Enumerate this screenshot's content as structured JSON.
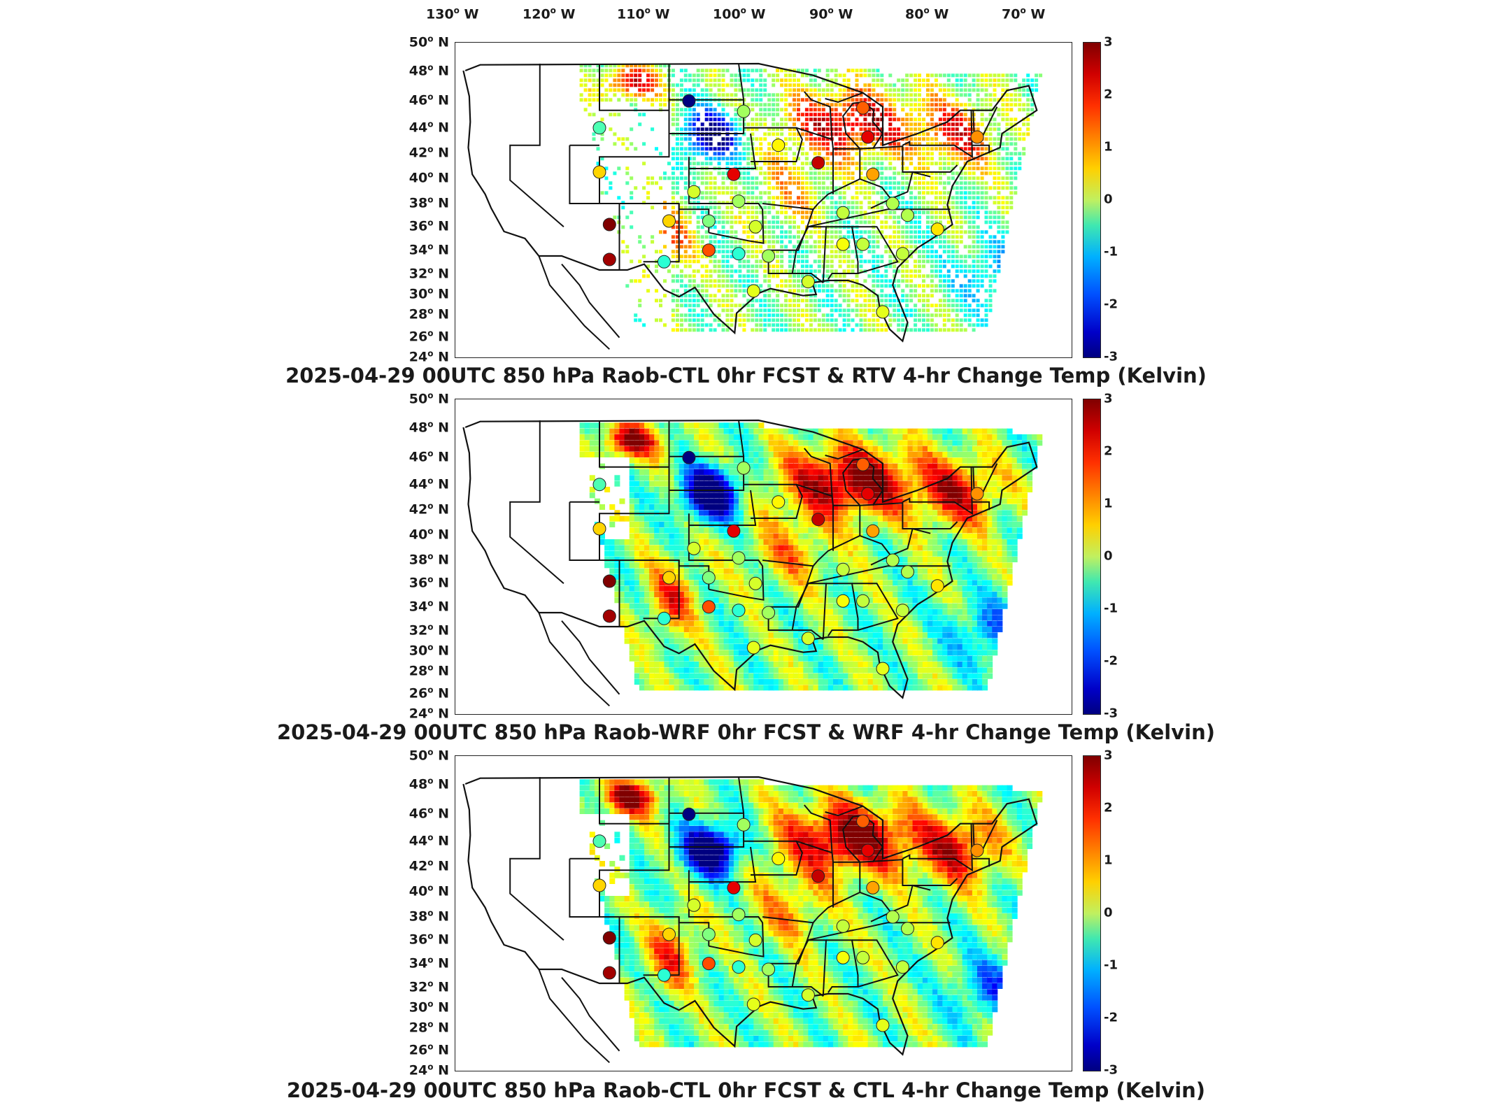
{
  "longitude_labels": [
    {
      "deg": "130",
      "hem": "W"
    },
    {
      "deg": "120",
      "hem": "W"
    },
    {
      "deg": "110",
      "hem": "W"
    },
    {
      "deg": "100",
      "hem": "W"
    },
    {
      "deg": "90",
      "hem": "W"
    },
    {
      "deg": "80",
      "hem": "W"
    },
    {
      "deg": "70",
      "hem": "W"
    }
  ],
  "latitude_labels": [
    {
      "deg": "50",
      "hem": "N"
    },
    {
      "deg": "48",
      "hem": "N"
    },
    {
      "deg": "46",
      "hem": "N"
    },
    {
      "deg": "44",
      "hem": "N"
    },
    {
      "deg": "42",
      "hem": "N"
    },
    {
      "deg": "40",
      "hem": "N"
    },
    {
      "deg": "38",
      "hem": "N"
    },
    {
      "deg": "36",
      "hem": "N"
    },
    {
      "deg": "34",
      "hem": "N"
    },
    {
      "deg": "32",
      "hem": "N"
    },
    {
      "deg": "30",
      "hem": "N"
    },
    {
      "deg": "28",
      "hem": "N"
    },
    {
      "deg": "26",
      "hem": "N"
    },
    {
      "deg": "24",
      "hem": "N"
    }
  ],
  "colorbar": {
    "ticks": [
      "3",
      "2",
      "1",
      "0",
      "-1",
      "-2",
      "-3"
    ],
    "range": [
      -3,
      3
    ],
    "colormap": "jet",
    "colors": [
      "#800000",
      "#d00000",
      "#ff3000",
      "#ff8000",
      "#ffd000",
      "#c0f060",
      "#40e8b0",
      "#00b0ff",
      "#0050ff",
      "#0000c8",
      "#000080"
    ]
  },
  "panels": [
    {
      "title": "2025-04-29 00UTC 850 hPa Raob-CTL 0hr FCST & RTV 4-hr Change Temp (Kelvin)",
      "field_style": "scattered"
    },
    {
      "title": "2025-04-29 00UTC 850 hPa Raob-WRF 0hr FCST & WRF 4-hr Change Temp (Kelvin)",
      "field_style": "filled"
    },
    {
      "title": "2025-04-29 00UTC 850 hPa Raob-CTL 0hr FCST & CTL 4-hr Change Temp (Kelvin)",
      "field_style": "filled"
    }
  ],
  "raob_stations": [
    {
      "name": "stn1",
      "lon": -111.0,
      "lat": 43.5,
      "value": -0.3
    },
    {
      "name": "stn2",
      "lon": -111.0,
      "lat": 39.7,
      "value": 1.0
    },
    {
      "name": "stn3",
      "lon": -110.0,
      "lat": 35.2,
      "value": 3.0
    },
    {
      "name": "stn4",
      "lon": -110.0,
      "lat": 32.2,
      "value": 2.8
    },
    {
      "name": "stn5",
      "lon": -102.0,
      "lat": 45.8,
      "value": -3.0
    },
    {
      "name": "stn6",
      "lon": -96.5,
      "lat": 44.9,
      "value": 0.2
    },
    {
      "name": "stn7",
      "lon": -93.0,
      "lat": 42.0,
      "value": 0.8
    },
    {
      "name": "stn8",
      "lon": -97.5,
      "lat": 39.5,
      "value": 2.4
    },
    {
      "name": "stn9",
      "lon": -101.5,
      "lat": 38.0,
      "value": 0.5
    },
    {
      "name": "stn10",
      "lon": -104.0,
      "lat": 35.5,
      "value": 1.0
    },
    {
      "name": "stn11",
      "lon": -100.0,
      "lat": 35.5,
      "value": 0.0
    },
    {
      "name": "stn12",
      "lon": -97.0,
      "lat": 37.2,
      "value": 0.2
    },
    {
      "name": "stn13",
      "lon": -95.3,
      "lat": 35.0,
      "value": 0.5
    },
    {
      "name": "stn14",
      "lon": -100.0,
      "lat": 33.0,
      "value": 1.8
    },
    {
      "name": "stn15",
      "lon": -104.5,
      "lat": 32.0,
      "value": -0.5
    },
    {
      "name": "stn16",
      "lon": -97.0,
      "lat": 32.7,
      "value": -0.5
    },
    {
      "name": "stn17",
      "lon": -94.0,
      "lat": 32.5,
      "value": 0.2
    },
    {
      "name": "stn18",
      "lon": -89.0,
      "lat": 40.5,
      "value": 2.6
    },
    {
      "name": "stn19",
      "lon": -84.5,
      "lat": 45.2,
      "value": 1.7
    },
    {
      "name": "stn20",
      "lon": -84.0,
      "lat": 42.7,
      "value": 2.4
    },
    {
      "name": "stn21",
      "lon": -83.5,
      "lat": 39.5,
      "value": 1.3
    },
    {
      "name": "stn22",
      "lon": -86.5,
      "lat": 36.2,
      "value": 0.4
    },
    {
      "name": "stn23",
      "lon": -81.5,
      "lat": 37.0,
      "value": 0.3
    },
    {
      "name": "stn24",
      "lon": -80.0,
      "lat": 36.0,
      "value": 0.3
    },
    {
      "name": "stn25",
      "lon": -86.5,
      "lat": 33.5,
      "value": 0.7
    },
    {
      "name": "stn26",
      "lon": -84.5,
      "lat": 33.5,
      "value": 0.4
    },
    {
      "name": "stn27",
      "lon": -80.5,
      "lat": 32.7,
      "value": 0.4
    },
    {
      "name": "stn28",
      "lon": -77.0,
      "lat": 34.8,
      "value": 0.9
    },
    {
      "name": "stn29",
      "lon": -73.0,
      "lat": 42.7,
      "value": 1.4
    },
    {
      "name": "stn30",
      "lon": -95.5,
      "lat": 29.5,
      "value": 0.6
    },
    {
      "name": "stn31",
      "lon": -90.0,
      "lat": 30.3,
      "value": 0.5
    },
    {
      "name": "stn32",
      "lon": -82.5,
      "lat": 27.7,
      "value": 0.6
    }
  ]
}
